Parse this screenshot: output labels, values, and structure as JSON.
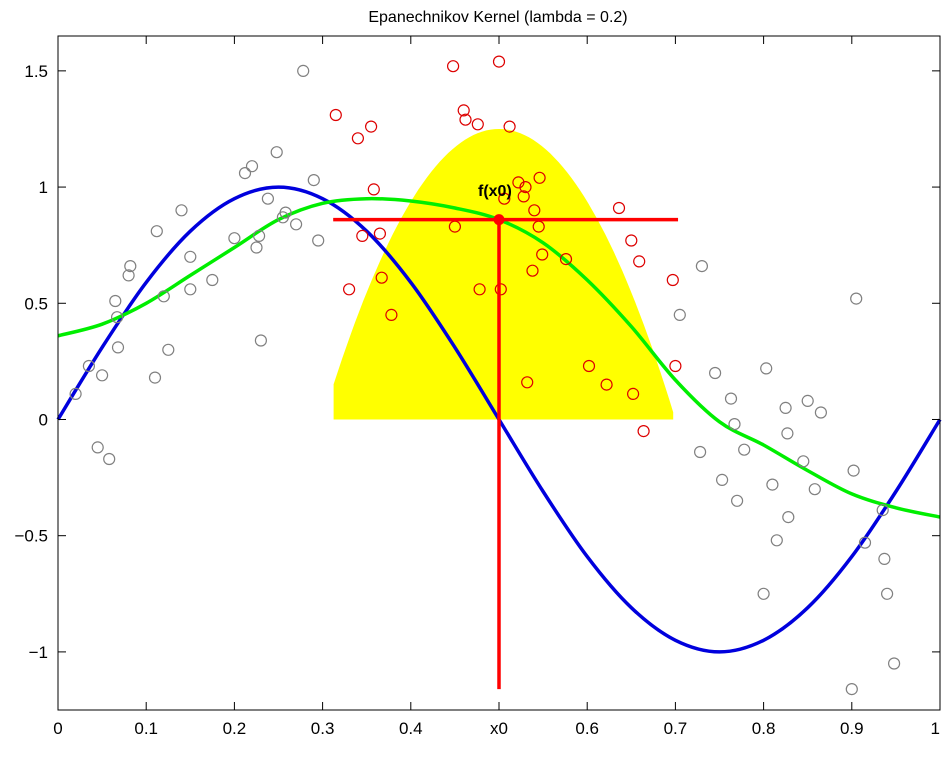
{
  "chart_data": {
    "type": "scatter",
    "title": "Epanechnikov Kernel (lambda = 0.2)",
    "xlabel": "",
    "ylabel": "",
    "xlim": [
      0,
      1
    ],
    "ylim": [
      -1.25,
      1.65
    ],
    "grid": false,
    "x_ticks": [
      {
        "value": 0,
        "label": "0"
      },
      {
        "value": 0.1,
        "label": "0.1"
      },
      {
        "value": 0.2,
        "label": "0.2"
      },
      {
        "value": 0.3,
        "label": "0.3"
      },
      {
        "value": 0.4,
        "label": "0.4"
      },
      {
        "value": 0.5,
        "label": "x0"
      },
      {
        "value": 0.6,
        "label": "0.6"
      },
      {
        "value": 0.7,
        "label": "0.7"
      },
      {
        "value": 0.8,
        "label": "0.8"
      },
      {
        "value": 0.9,
        "label": "0.9"
      },
      {
        "value": 1,
        "label": "1"
      }
    ],
    "y_ticks": [
      {
        "value": -1,
        "label": "−1"
      },
      {
        "value": -0.5,
        "label": "−0.5"
      },
      {
        "value": 0,
        "label": "0"
      },
      {
        "value": 0.5,
        "label": "0.5"
      },
      {
        "value": 1,
        "label": "1"
      },
      {
        "value": 1.5,
        "label": "1.5"
      }
    ],
    "colors": {
      "true_curve": "#0000dd",
      "fit_curve": "#00ee00",
      "kernel_fill": "#ffff00",
      "in_window_points": "#dd0000",
      "outside_points": "#808080",
      "marker": "#ff0000"
    },
    "kernel": {
      "x0": 0.5,
      "lambda": 0.2,
      "height": 1.25,
      "window": [
        0.3125,
        0.6975
      ]
    },
    "fit_point": {
      "x": 0.5,
      "y": 0.86,
      "label": "f(x0)"
    },
    "crosshair": {
      "x_range": [
        0.312,
        0.703
      ],
      "y_range": [
        -1.16,
        0.86
      ]
    },
    "series": [
      {
        "kind": "curve",
        "x": [
          0,
          0.05,
          0.1,
          0.15,
          0.2,
          0.25,
          0.3,
          0.35,
          0.4,
          0.45,
          0.5,
          0.55,
          0.6,
          0.65,
          0.7,
          0.75,
          0.8,
          0.85,
          0.9,
          0.95,
          1
        ],
        "y": [
          0,
          0.31,
          0.59,
          0.81,
          0.95,
          1.0,
          0.95,
          0.81,
          0.59,
          0.31,
          0,
          -0.31,
          -0.59,
          -0.81,
          -0.95,
          -1.0,
          -0.95,
          -0.81,
          -0.59,
          -0.31,
          0
        ],
        "role": "true"
      },
      {
        "kind": "curve",
        "x": [
          0,
          0.05,
          0.1,
          0.15,
          0.2,
          0.25,
          0.3,
          0.35,
          0.4,
          0.45,
          0.5,
          0.55,
          0.6,
          0.65,
          0.7,
          0.75,
          0.8,
          0.85,
          0.9,
          0.95,
          1
        ],
        "y": [
          0.36,
          0.41,
          0.5,
          0.62,
          0.74,
          0.86,
          0.93,
          0.95,
          0.94,
          0.91,
          0.86,
          0.76,
          0.6,
          0.4,
          0.17,
          -0.01,
          -0.11,
          -0.22,
          -0.32,
          -0.38,
          -0.42
        ],
        "role": "fit"
      },
      {
        "kind": "points",
        "role": "outside",
        "x": [
          0.02,
          0.035,
          0.045,
          0.05,
          0.058,
          0.065,
          0.067,
          0.068,
          0.08,
          0.082,
          0.11,
          0.112,
          0.12,
          0.125,
          0.14,
          0.15,
          0.15,
          0.175,
          0.2,
          0.212,
          0.22,
          0.225,
          0.228,
          0.23,
          0.238,
          0.248,
          0.255,
          0.258,
          0.27,
          0.278,
          0.29,
          0.295,
          0.705,
          0.728,
          0.73,
          0.745,
          0.753,
          0.763,
          0.767,
          0.77,
          0.778,
          0.8,
          0.803,
          0.81,
          0.815,
          0.825,
          0.827,
          0.828,
          0.845,
          0.85,
          0.858,
          0.865,
          0.9,
          0.902,
          0.905,
          0.915,
          0.935,
          0.937,
          0.94,
          0.948
        ],
        "y": [
          0.11,
          0.23,
          -0.12,
          0.19,
          -0.17,
          0.51,
          0.44,
          0.31,
          0.62,
          0.66,
          0.18,
          0.81,
          0.53,
          0.3,
          0.9,
          0.7,
          0.56,
          0.6,
          0.78,
          1.06,
          1.09,
          0.74,
          0.79,
          0.34,
          0.95,
          1.15,
          0.87,
          0.89,
          0.84,
          1.5,
          1.03,
          0.77,
          0.45,
          -0.14,
          0.66,
          0.2,
          -0.26,
          0.09,
          -0.02,
          -0.35,
          -0.13,
          -0.75,
          0.22,
          -0.28,
          -0.52,
          0.05,
          -0.06,
          -0.42,
          -0.18,
          0.08,
          -0.3,
          0.03,
          -1.16,
          -0.22,
          0.52,
          -0.53,
          -0.39,
          -0.6,
          -0.75,
          -1.05
        ]
      },
      {
        "kind": "points",
        "role": "in_window",
        "x": [
          0.315,
          0.33,
          0.34,
          0.345,
          0.355,
          0.358,
          0.365,
          0.367,
          0.378,
          0.448,
          0.45,
          0.46,
          0.462,
          0.476,
          0.478,
          0.5,
          0.502,
          0.506,
          0.512,
          0.522,
          0.528,
          0.53,
          0.532,
          0.538,
          0.54,
          0.545,
          0.546,
          0.549,
          0.576,
          0.602,
          0.622,
          0.636,
          0.65,
          0.652,
          0.659,
          0.664,
          0.697,
          0.7
        ],
        "y": [
          1.31,
          0.56,
          1.21,
          0.79,
          1.26,
          0.99,
          0.8,
          0.61,
          0.45,
          1.52,
          0.83,
          1.33,
          1.29,
          1.27,
          0.56,
          1.54,
          0.56,
          0.95,
          1.26,
          1.02,
          0.96,
          1.0,
          0.16,
          0.64,
          0.9,
          0.83,
          1.04,
          0.71,
          0.69,
          0.23,
          0.15,
          0.91,
          0.77,
          0.11,
          0.68,
          -0.05,
          0.6,
          0.23
        ]
      }
    ]
  }
}
